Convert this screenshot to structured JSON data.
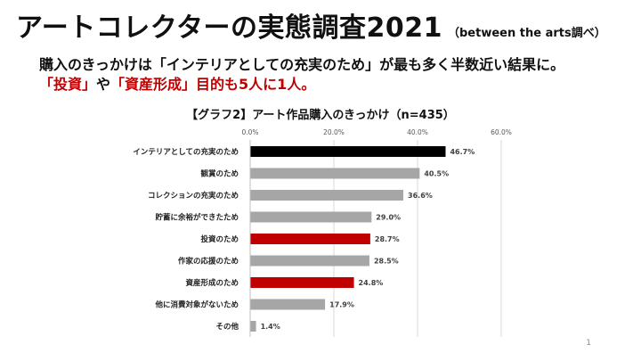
{
  "slide": {
    "title": "アートコレクターの実態調査2021",
    "title_note": "（between the arts調べ）",
    "subtitle_line1": "購入のきっかけは「インテリアとしての充実のため」が最も多く半数近い結果に。",
    "subtitle_line2_red1": "「投資」",
    "subtitle_line2_dark1": "や",
    "subtitle_line2_red2": "「資産形成」",
    "subtitle_line2_dark2": "目的も5人に1人。",
    "page_number": "1"
  },
  "colors": {
    "black_bar": "#000000",
    "gray_bar": "#a6a6a6",
    "red_bar": "#c00000",
    "grid": "#d9d9d9",
    "axis_text": "#595959"
  },
  "chart_data": {
    "type": "bar",
    "orientation": "horizontal",
    "title": "【グラフ2】アート作品購入のきっかけ（n=435）",
    "xlim": [
      0,
      60
    ],
    "ticks": [
      0,
      20,
      40,
      60
    ],
    "tick_labels": [
      "0.0%",
      "20.0%",
      "40.0%",
      "60.0%"
    ],
    "grid": true,
    "categories": [
      "インテリアとしての充実のため",
      "観賞のため",
      "コレクションの充実のため",
      "貯蓄に余裕ができたため",
      "投資のため",
      "作家の応援のため",
      "資産形成のため",
      "他に消費対象がないため",
      "その他"
    ],
    "values": [
      46.7,
      40.5,
      36.6,
      29.0,
      28.7,
      28.5,
      24.8,
      17.9,
      1.4
    ],
    "value_labels": [
      "46.7%",
      "40.5%",
      "36.6%",
      "29.0%",
      "28.7%",
      "28.5%",
      "24.8%",
      "17.9%",
      "1.4%"
    ],
    "bar_colors": [
      "#000000",
      "#a6a6a6",
      "#a6a6a6",
      "#a6a6a6",
      "#c00000",
      "#a6a6a6",
      "#c00000",
      "#a6a6a6",
      "#a6a6a6"
    ]
  }
}
